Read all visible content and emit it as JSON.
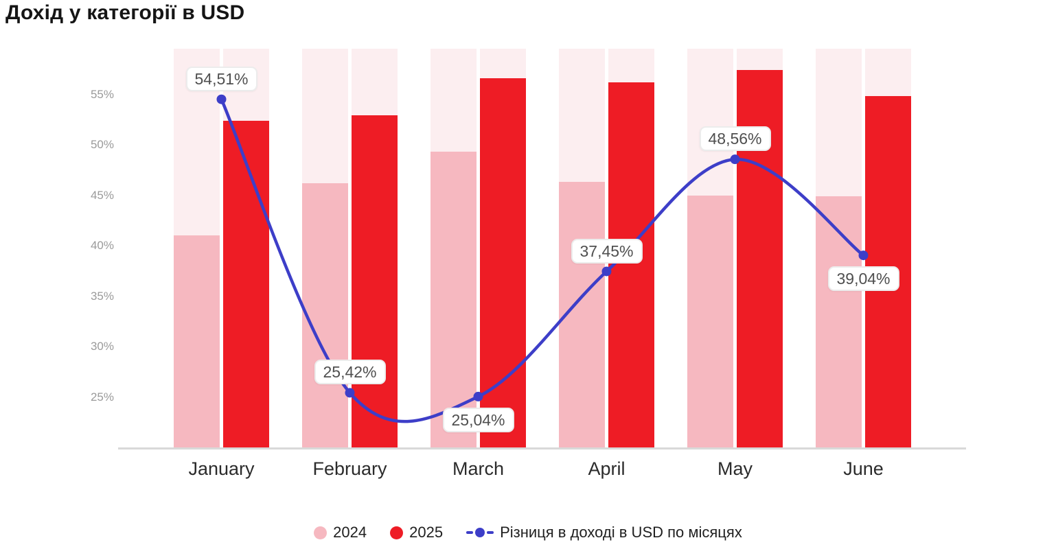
{
  "title": "Дохід у категорії в USD",
  "chart_data": {
    "type": "combo",
    "categories": [
      "January",
      "February",
      "March",
      "April",
      "May",
      "June"
    ],
    "series": [
      {
        "name": "2024",
        "type": "bar",
        "color": "#f6b8c0",
        "values": [
          41.0,
          46.2,
          49.3,
          46.3,
          45.0,
          44.9
        ]
      },
      {
        "name": "2025",
        "type": "bar",
        "color": "#ee1c25",
        "values": [
          52.4,
          52.9,
          56.6,
          56.2,
          57.4,
          54.8
        ]
      },
      {
        "name": "Різниця в доході в USD по місяцях",
        "type": "line",
        "color": "#3d3ec8",
        "values": [
          54.51,
          25.42,
          25.04,
          37.45,
          48.56,
          39.04
        ],
        "point_labels": [
          "54,51%",
          "25,42%",
          "25,04%",
          "37,45%",
          "48,56%",
          "39,04%"
        ],
        "label_placement": [
          "above",
          "above",
          "below",
          "above",
          "above",
          "below"
        ]
      }
    ],
    "yticks": [
      {
        "value": 25,
        "label": "25%"
      },
      {
        "value": 30,
        "label": "30%"
      },
      {
        "value": 35,
        "label": "35%"
      },
      {
        "value": 40,
        "label": "40%"
      },
      {
        "value": 45,
        "label": "45%"
      },
      {
        "value": 50,
        "label": "50%"
      },
      {
        "value": 55,
        "label": "55%"
      }
    ],
    "ylim": [
      20,
      59.6
    ],
    "grid": false,
    "legend_position": "bottom",
    "background_tracks": {
      "show": true,
      "color": "#fceef0"
    }
  },
  "colors": {
    "axis_line": "#d9d9d9",
    "tick_text": "#9a9a9a",
    "category_text": "#2b2b2b",
    "callout_text": "#4f4f4f",
    "callout_border": "#ececec",
    "title_text": "#151515",
    "background": "#ffffff"
  }
}
